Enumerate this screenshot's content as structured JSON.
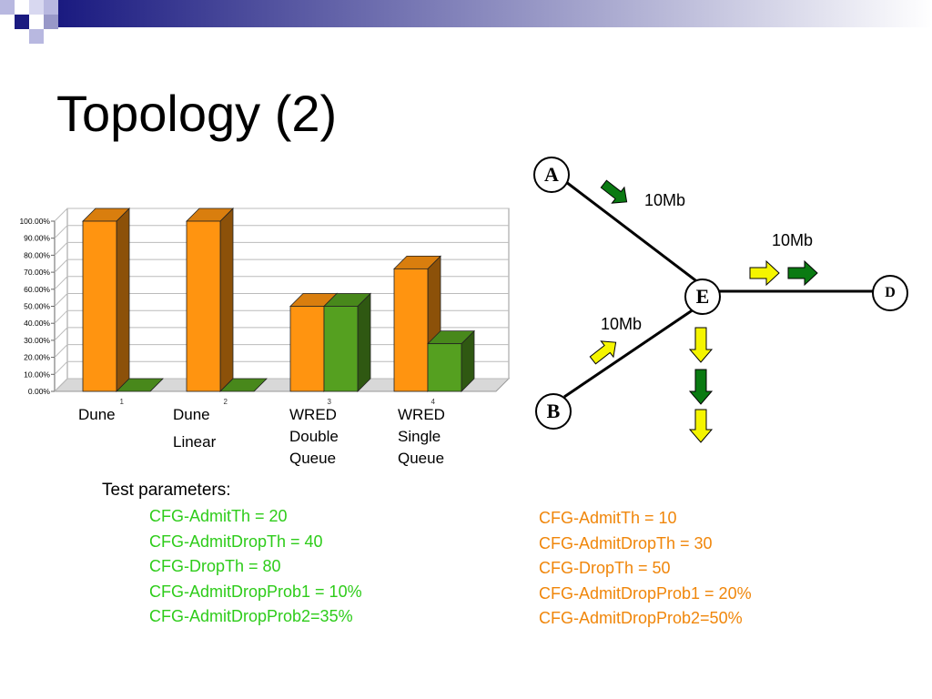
{
  "slide": {
    "title": "Topology (2)"
  },
  "chart_data": {
    "type": "bar",
    "categories": [
      "Dune",
      "Dune Linear",
      "WRED Double Queue",
      "WRED Single Queue"
    ],
    "category_lines": [
      [
        "Dune"
      ],
      [
        "Dune",
        "Linear"
      ],
      [
        "WRED",
        "Double",
        "Queue"
      ],
      [
        "WRED",
        "Single",
        "Queue"
      ]
    ],
    "tick_numbers": [
      "1",
      "2",
      "3",
      "4"
    ],
    "yticks": [
      "0.00%",
      "10.00%",
      "20.00%",
      "30.00%",
      "40.00%",
      "50.00%",
      "60.00%",
      "70.00%",
      "80.00%",
      "90.00%",
      "100.00%"
    ],
    "ylim": [
      0,
      100
    ],
    "series": [
      {
        "values": [
          100,
          100,
          50,
          72
        ],
        "color": "#ff9410"
      },
      {
        "values": [
          0,
          0,
          50,
          28
        ],
        "color": "#55a020"
      }
    ],
    "grid": true,
    "legend": "none"
  },
  "topology": {
    "nodes": {
      "A": "A",
      "B": "B",
      "D": "D",
      "E": "E"
    },
    "links": {
      "ae": "10Mb",
      "ed": "10Mb",
      "be": "10Mb"
    },
    "arrow_colors": {
      "yellow": "#f5f500",
      "green": "#0a7a12"
    }
  },
  "params": {
    "heading": "Test parameters:",
    "left": [
      "CFG-AdmitTh = 20",
      "CFG-AdmitDropTh = 40",
      "CFG-DropTh = 80",
      "CFG-AdmitDropProb1 = 10%",
      "CFG-AdmitDropProb2=35%"
    ],
    "right": [
      "CFG-AdmitTh = 10",
      "CFG-AdmitDropTh = 30",
      "CFG-DropTh = 50",
      "CFG-AdmitDropProb1 = 20%",
      "CFG-AdmitDropProb2=50%"
    ],
    "left_color": "#2ecc1a",
    "right_color": "#f0860a"
  }
}
